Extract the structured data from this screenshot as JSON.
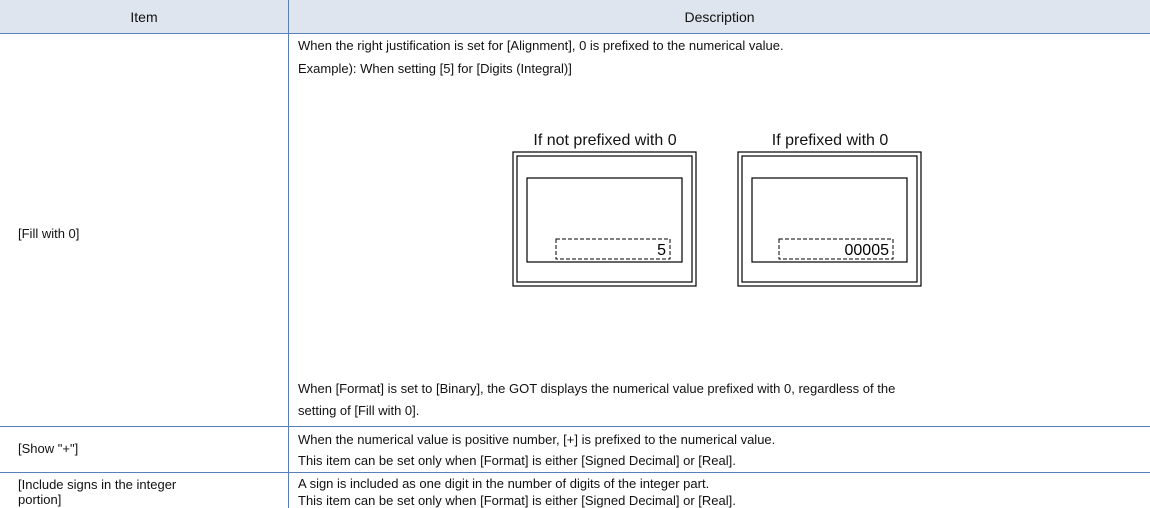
{
  "header": {
    "item": "Item",
    "description": "Description"
  },
  "rows": [
    {
      "item": "[Fill with 0]",
      "description": [
        "When the right justification is set for [Alignment], 0 is prefixed to the numerical value.",
        "Example): When setting [5] for [Digits (Integral)]"
      ],
      "figure": {
        "left_caption": "If not prefixed with 0",
        "left_value": "5",
        "right_caption": "If prefixed with 0",
        "right_value": "00005"
      },
      "note": [
        "When [Format] is set to [Binary], the GOT displays the numerical value prefixed with 0, regardless of the",
        "setting of [Fill with 0]."
      ]
    },
    {
      "item": "[Show \"+\"]",
      "description": [
        "When the numerical value is positive number, [+] is prefixed to the numerical value.",
        "This item can be set only when [Format] is either [Signed Decimal] or [Real]."
      ]
    },
    {
      "item": [
        "[Include signs in the integer",
        "portion]"
      ],
      "description": [
        "A sign is included as one digit in the number of digits of the integer part.",
        "This item can be set only when [Format] is either [Signed Decimal] or [Real]."
      ]
    }
  ]
}
